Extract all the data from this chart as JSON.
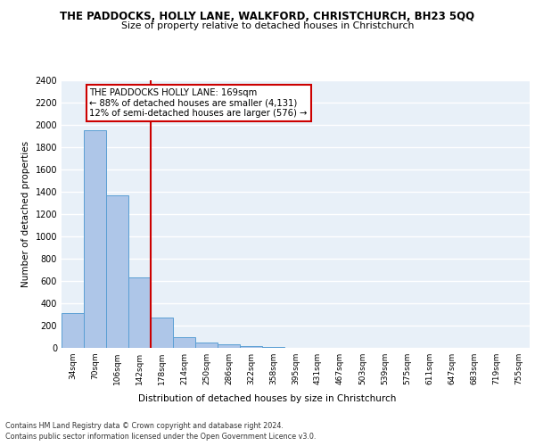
{
  "title": "THE PADDOCKS, HOLLY LANE, WALKFORD, CHRISTCHURCH, BH23 5QQ",
  "subtitle": "Size of property relative to detached houses in Christchurch",
  "xlabel": "Distribution of detached houses by size in Christchurch",
  "ylabel": "Number of detached properties",
  "bar_color": "#aec6e8",
  "bar_edge_color": "#5a9fd4",
  "background_color": "#e8f0f8",
  "grid_color": "#ffffff",
  "categories": [
    "34sqm",
    "70sqm",
    "106sqm",
    "142sqm",
    "178sqm",
    "214sqm",
    "250sqm",
    "286sqm",
    "322sqm",
    "358sqm",
    "395sqm",
    "431sqm",
    "467sqm",
    "503sqm",
    "539sqm",
    "575sqm",
    "611sqm",
    "647sqm",
    "683sqm",
    "719sqm",
    "755sqm"
  ],
  "values": [
    310,
    1950,
    1370,
    630,
    270,
    100,
    45,
    30,
    20,
    5,
    0,
    0,
    0,
    0,
    0,
    0,
    0,
    0,
    0,
    0,
    0
  ],
  "red_line_index": 4,
  "red_line_color": "#cc0000",
  "ylim": [
    0,
    2400
  ],
  "yticks": [
    0,
    200,
    400,
    600,
    800,
    1000,
    1200,
    1400,
    1600,
    1800,
    2000,
    2200,
    2400
  ],
  "annotation_text": "THE PADDOCKS HOLLY LANE: 169sqm\n← 88% of detached houses are smaller (4,131)\n12% of semi-detached houses are larger (576) →",
  "annotation_color": "#cc0000",
  "footer_line1": "Contains HM Land Registry data © Crown copyright and database right 2024.",
  "footer_line2": "Contains public sector information licensed under the Open Government Licence v3.0."
}
